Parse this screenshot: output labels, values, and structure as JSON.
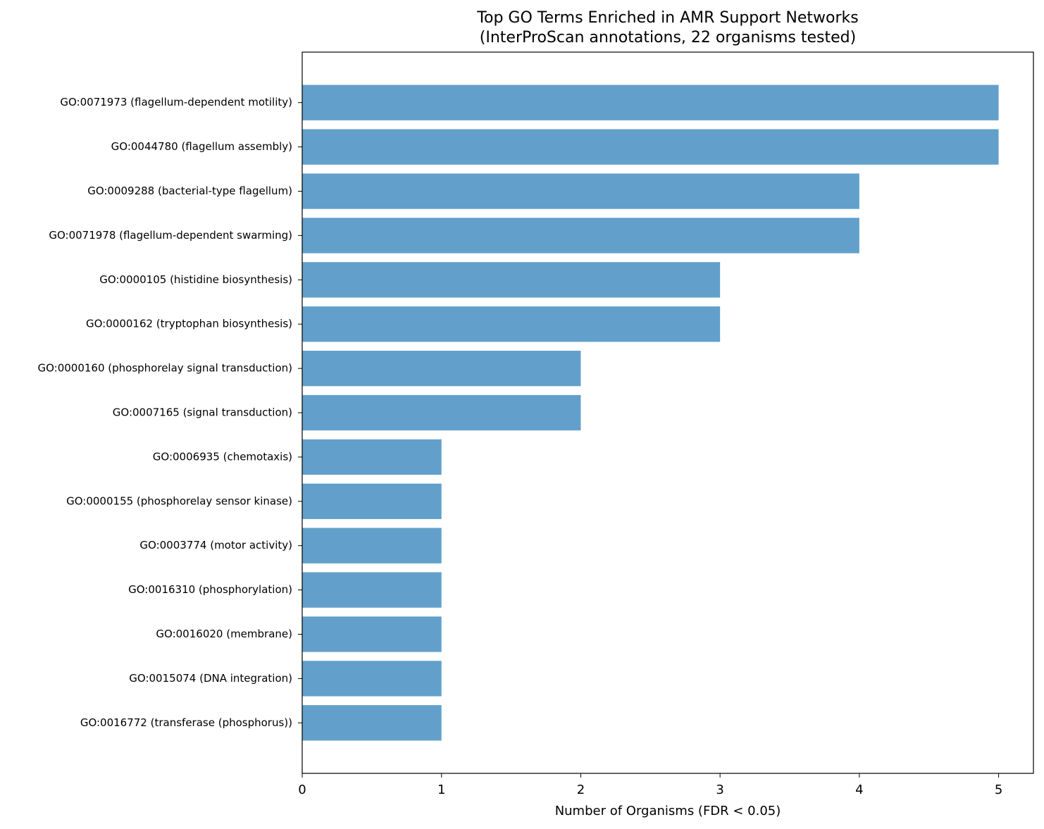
{
  "chart_data": {
    "type": "barh",
    "title": [
      "Top GO Terms Enriched in AMR Support Networks",
      "(InterProScan annotations, 22 organisms tested)"
    ],
    "xlabel": "Number of Organisms (FDR < 0.05)",
    "categories": [
      "GO:0071973 (flagellum-dependent motility)",
      "GO:0044780 (flagellum assembly)",
      "GO:0009288 (bacterial-type flagellum)",
      "GO:0071978 (flagellum-dependent swarming)",
      "GO:0000105 (histidine biosynthesis)",
      "GO:0000162 (tryptophan biosynthesis)",
      "GO:0000160 (phosphorelay signal transduction)",
      "GO:0007165 (signal transduction)",
      "GO:0006935 (chemotaxis)",
      "GO:0000155 (phosphorelay sensor kinase)",
      "GO:0003774 (motor activity)",
      "GO:0016310 (phosphorylation)",
      "GO:0016020 (membrane)",
      "GO:0015074 (DNA integration)",
      "GO:0016772 (transferase (phosphorus))"
    ],
    "values": [
      5,
      5,
      4,
      4,
      3,
      3,
      2,
      2,
      1,
      1,
      1,
      1,
      1,
      1,
      1
    ],
    "color": "#62a0cb",
    "xlim": [
      0,
      5.25
    ],
    "xticks": [
      0,
      1,
      2,
      3,
      4,
      5
    ],
    "grid": false
  }
}
